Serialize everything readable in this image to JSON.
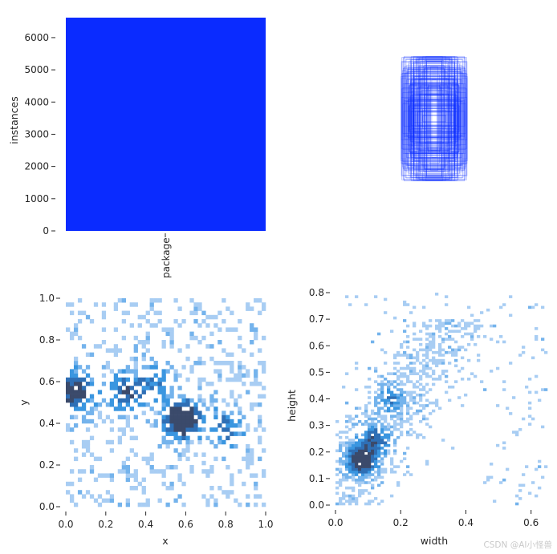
{
  "chart_data": [
    {
      "id": "instances",
      "type": "bar",
      "categories": [
        "package"
      ],
      "values": [
        6620
      ],
      "ylabel": "instances",
      "ylim": [
        0,
        6620
      ],
      "yticks": [
        0,
        1000,
        2000,
        3000,
        4000,
        5000,
        6000
      ],
      "colors": {
        "bar": "#0a2bff"
      }
    },
    {
      "id": "boxes",
      "type": "scatter",
      "description_free": true,
      "colors": {
        "stroke": "#0a2bff"
      }
    },
    {
      "id": "xy",
      "type": "heatmap",
      "xlabel": "x",
      "ylabel": "y",
      "xlim": [
        0,
        1
      ],
      "ylim": [
        0,
        1
      ],
      "xticks": [
        "0.0",
        "0.2",
        "0.4",
        "0.6",
        "0.8",
        "1.0"
      ],
      "yticks": [
        "0.0",
        "0.2",
        "0.4",
        "0.6",
        "0.8",
        "1.0"
      ],
      "hotspots": [
        {
          "x": 0.58,
          "y": 0.42,
          "weight": 1.0
        },
        {
          "x": 0.05,
          "y": 0.55,
          "weight": 0.8
        },
        {
          "x": 0.3,
          "y": 0.55,
          "weight": 0.6
        },
        {
          "x": 0.45,
          "y": 0.6,
          "weight": 0.4
        },
        {
          "x": 0.8,
          "y": 0.38,
          "weight": 0.45
        }
      ]
    },
    {
      "id": "wh",
      "type": "heatmap",
      "xlabel": "width",
      "ylabel": "height",
      "xlim": [
        0,
        0.65
      ],
      "ylim": [
        0,
        0.8
      ],
      "xticks": [
        "0.0",
        "0.2",
        "0.4",
        "0.6"
      ],
      "yticks": [
        "0.0",
        "0.1",
        "0.2",
        "0.3",
        "0.4",
        "0.5",
        "0.6",
        "0.7",
        "0.8"
      ],
      "hotspots": [
        {
          "x": 0.08,
          "y": 0.17,
          "weight": 1.0
        },
        {
          "x": 0.12,
          "y": 0.25,
          "weight": 0.6
        },
        {
          "x": 0.17,
          "y": 0.4,
          "weight": 0.35
        }
      ]
    }
  ],
  "watermark": "CSDN @AI小怪兽"
}
